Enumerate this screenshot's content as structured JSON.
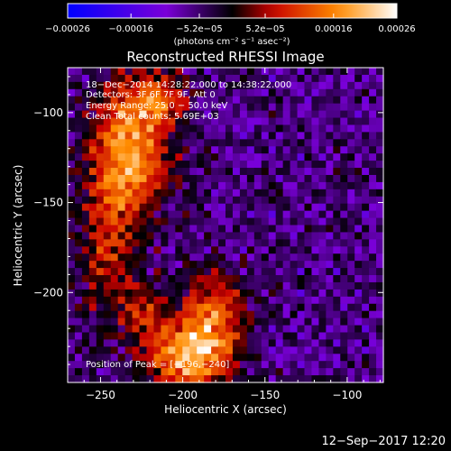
{
  "chart_data": {
    "type": "heatmap",
    "title": "Reconstructed RHESSI Image",
    "xlabel": "Heliocentric X (arcsec)",
    "ylabel": "Heliocentric Y (arcsec)",
    "xlim": [
      -270,
      -78
    ],
    "ylim": [
      -250,
      -75
    ],
    "x_ticks": [
      -250,
      -200,
      -150,
      -100
    ],
    "x_tick_labels": [
      "−250",
      "−200",
      "−150",
      "−100"
    ],
    "y_ticks": [
      -100,
      -150,
      -200
    ],
    "y_tick_labels": [
      "−100",
      "−150",
      "−200"
    ],
    "colorbar": {
      "range": [
        -0.00026,
        0.00026
      ],
      "ticks": [
        -0.00026,
        -0.00016,
        -5.2e-05,
        5.2e-05,
        0.00016,
        0.00026
      ],
      "tick_labels": [
        "−0.00026",
        "−0.00016",
        "−5.2e−05",
        "5.2e−05",
        "0.00016",
        "0.00026"
      ],
      "units": "(photons cm⁻² s⁻¹ asec⁻²)",
      "colormap": [
        "#0000ff",
        "#7a00d8",
        "#000000",
        "#c80000",
        "#ff8c00",
        "#ffffff"
      ]
    },
    "annotations": {
      "time_range": "18−Dec−2014 14:28:22.000 to 14:38:22.000",
      "detectors": "Detectors: 3F 6F 7F 9F, Att 0",
      "energy": "Energy Range: 25.0 − 50.0 keV",
      "clean": "Clean     Total counts: 5.69E+03",
      "peak": "Position of Peak = [−196,−240]"
    },
    "peak_position": [
      -196,
      -240
    ],
    "sources": [
      {
        "x": -232,
        "y": -120,
        "sx": 16,
        "sy": 26,
        "amp": 0.00024
      },
      {
        "x": -214,
        "y": -92,
        "sx": 12,
        "sy": 10,
        "amp": 0.00014
      },
      {
        "x": -246,
        "y": -175,
        "sx": 13,
        "sy": 28,
        "amp": 0.00012
      },
      {
        "x": -196,
        "y": -235,
        "sx": 18,
        "sy": 14,
        "amp": 0.00026
      },
      {
        "x": -182,
        "y": -210,
        "sx": 14,
        "sy": 16,
        "amp": 0.00016
      },
      {
        "x": -225,
        "y": -212,
        "sx": 10,
        "sy": 12,
        "amp": 0.00011
      }
    ],
    "background_level": -6e-05,
    "noise_amplitude": 4.5e-05,
    "grid": false
  },
  "footer": {
    "timestamp": "12−Sep−2017 12:20"
  }
}
